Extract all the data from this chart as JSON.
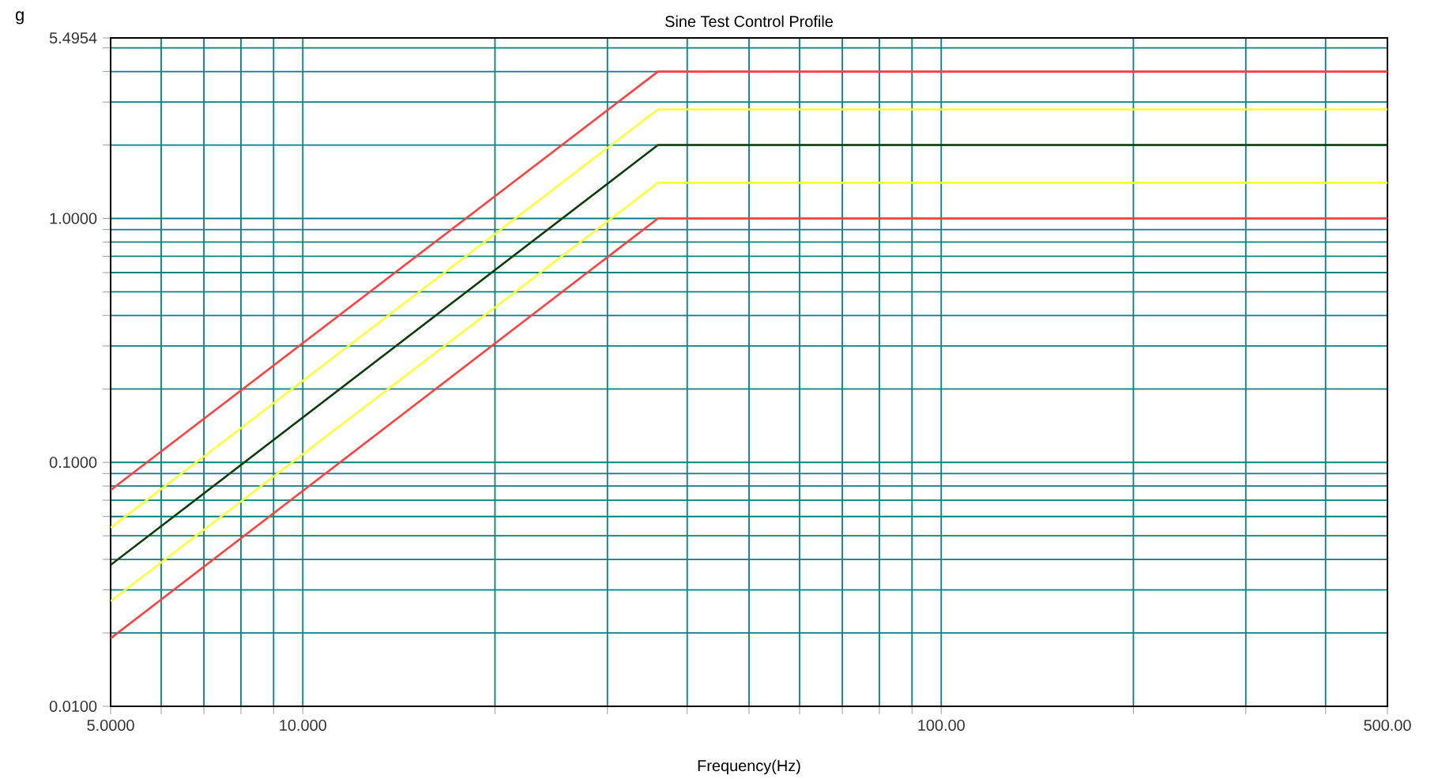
{
  "chart_data": {
    "type": "line",
    "title": "Sine Test Control Profile",
    "xlabel": "Frequency(Hz)",
    "ylabel": "g",
    "log": "xy",
    "grid": true,
    "marker": "none",
    "line_style": "solid",
    "xlim": [
      5,
      500
    ],
    "ylim": [
      0.01,
      5.4954
    ],
    "xticks": [
      {
        "value": 5,
        "label": "5.0000"
      },
      {
        "value": 6,
        "label": null
      },
      {
        "value": 7,
        "label": null
      },
      {
        "value": 8,
        "label": null
      },
      {
        "value": 9,
        "label": null
      },
      {
        "value": 10,
        "label": "10.000"
      },
      {
        "value": 20,
        "label": null
      },
      {
        "value": 30,
        "label": null
      },
      {
        "value": 40,
        "label": null
      },
      {
        "value": 50,
        "label": null
      },
      {
        "value": 60,
        "label": null
      },
      {
        "value": 70,
        "label": null
      },
      {
        "value": 80,
        "label": null
      },
      {
        "value": 90,
        "label": null
      },
      {
        "value": 100,
        "label": "100.00"
      },
      {
        "value": 200,
        "label": null
      },
      {
        "value": 300,
        "label": null
      },
      {
        "value": 400,
        "label": null
      },
      {
        "value": 500,
        "label": "500.00"
      }
    ],
    "yticks": [
      {
        "value": 0.01,
        "label": "0.0100"
      },
      {
        "value": 0.02,
        "label": null
      },
      {
        "value": 0.03,
        "label": null
      },
      {
        "value": 0.04,
        "label": null
      },
      {
        "value": 0.05,
        "label": null
      },
      {
        "value": 0.06,
        "label": null
      },
      {
        "value": 0.07,
        "label": null
      },
      {
        "value": 0.08,
        "label": null
      },
      {
        "value": 0.09,
        "label": null
      },
      {
        "value": 0.1,
        "label": "0.1000"
      },
      {
        "value": 0.2,
        "label": null
      },
      {
        "value": 0.3,
        "label": null
      },
      {
        "value": 0.4,
        "label": null
      },
      {
        "value": 0.5,
        "label": null
      },
      {
        "value": 0.6,
        "label": null
      },
      {
        "value": 0.7,
        "label": null
      },
      {
        "value": 0.8,
        "label": null
      },
      {
        "value": 0.9,
        "label": null
      },
      {
        "value": 1,
        "label": "1.0000"
      },
      {
        "value": 2,
        "label": null
      },
      {
        "value": 3,
        "label": null
      },
      {
        "value": 4,
        "label": null
      },
      {
        "value": 5,
        "label": null
      },
      {
        "value": 5.4954,
        "label": "5.4954"
      }
    ],
    "x": [
      5,
      36,
      500
    ],
    "series": [
      {
        "color": "#ff4040",
        "values": [
          0.077,
          4.0,
          4.0
        ]
      },
      {
        "color": "#ffff33",
        "values": [
          0.054,
          2.8,
          2.8
        ]
      },
      {
        "color": "#0b3d0b",
        "values": [
          0.038,
          2.0,
          2.0
        ]
      },
      {
        "color": "#ffff33",
        "values": [
          0.027,
          1.4,
          1.4
        ]
      },
      {
        "color": "#ff4040",
        "values": [
          0.019,
          1.0,
          1.0
        ]
      }
    ]
  }
}
